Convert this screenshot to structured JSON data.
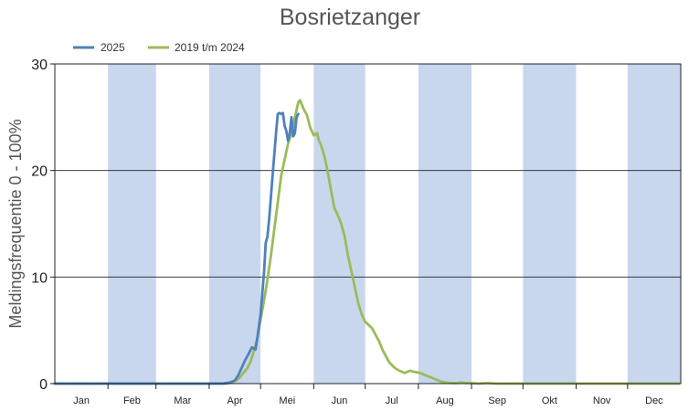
{
  "chart_data": {
    "type": "line",
    "title": "Bosrietzanger",
    "ylabel": "Meldingsfrequentie 0 - 100%",
    "xlabel": "",
    "ylim": [
      0,
      30
    ],
    "yticks": [
      0,
      10,
      20,
      30
    ],
    "months": [
      "Jan",
      "Feb",
      "Mar",
      "Apr",
      "Mei",
      "Jun",
      "Jul",
      "Aug",
      "Sep",
      "Okt",
      "Nov",
      "Dec"
    ],
    "shaded_months": [
      "Feb",
      "Apr",
      "Jun",
      "Aug",
      "Okt",
      "Dec"
    ],
    "grid": true,
    "legend_position": "top-left",
    "colors": {
      "band": "#c8d7ee",
      "grid": "#222222"
    },
    "series": [
      {
        "name": "2025",
        "color": "#4f81bd",
        "x": [
          "01-01",
          "04-09",
          "04-13",
          "04-16",
          "04-18",
          "04-20",
          "04-22",
          "04-24",
          "04-26",
          "04-28",
          "04-29",
          "05-01",
          "05-02",
          "05-03",
          "05-04",
          "05-05",
          "05-06",
          "05-07",
          "05-08",
          "05-09",
          "05-10",
          "05-11",
          "05-12",
          "05-13",
          "05-14",
          "05-15",
          "05-16",
          "05-17",
          "05-18",
          "05-19",
          "05-20",
          "05-21",
          "05-22",
          "05-23"
        ],
        "y": [
          0,
          0,
          0.1,
          0.3,
          0.8,
          1.5,
          2.2,
          2.8,
          3.4,
          3.2,
          4.2,
          6.5,
          8.5,
          10.5,
          13.2,
          13.8,
          15.5,
          17.5,
          19.5,
          21.5,
          23.5,
          25.3,
          25.4,
          25.3,
          25.4,
          24.2,
          23.7,
          22.8,
          23.5,
          25.0,
          23.2,
          23.5,
          25.0,
          25.3
        ]
      },
      {
        "name": "2019 t/m 2024",
        "color": "#9bbb59",
        "x": [
          "01-01",
          "04-05",
          "04-11",
          "04-14",
          "04-17",
          "04-19",
          "04-21",
          "04-23",
          "04-25",
          "04-27",
          "04-29",
          "05-01",
          "05-03",
          "05-05",
          "05-07",
          "05-09",
          "05-11",
          "05-13",
          "05-15",
          "05-17",
          "05-19",
          "05-21",
          "05-23",
          "05-24",
          "05-25",
          "05-26",
          "05-28",
          "05-30",
          "06-01",
          "06-03",
          "06-04",
          "06-05",
          "06-07",
          "06-09",
          "06-11",
          "06-13",
          "06-15",
          "06-17",
          "06-19",
          "06-21",
          "06-23",
          "06-25",
          "06-27",
          "06-29",
          "07-01",
          "07-03",
          "07-05",
          "07-07",
          "07-09",
          "07-11",
          "07-13",
          "07-15",
          "07-18",
          "07-21",
          "07-24",
          "07-27",
          "07-30",
          "08-02",
          "08-05",
          "08-08",
          "08-11",
          "08-14",
          "08-17",
          "08-20",
          "08-23",
          "08-26",
          "08-29",
          "09-01",
          "09-05",
          "09-10",
          "09-15",
          "09-20",
          "09-25",
          "09-30",
          "10-05",
          "10-10",
          "10-20",
          "11-01",
          "12-01",
          "12-31"
        ],
        "y": [
          0,
          0,
          0,
          0.1,
          0.3,
          0.6,
          1.0,
          1.4,
          2.0,
          3.0,
          4.2,
          6.0,
          7.8,
          9.8,
          12.0,
          14.5,
          17.0,
          19.5,
          21.0,
          22.5,
          23.5,
          25.0,
          26.4,
          26.6,
          26.2,
          25.8,
          25.2,
          24.0,
          23.3,
          23.5,
          22.8,
          22.5,
          21.5,
          20.0,
          18.2,
          16.5,
          15.8,
          15.0,
          13.8,
          12.0,
          10.5,
          9.0,
          7.5,
          6.5,
          5.8,
          5.5,
          5.2,
          4.6,
          4.0,
          3.2,
          2.6,
          2.0,
          1.5,
          1.2,
          1.0,
          1.2,
          1.1,
          1.0,
          0.8,
          0.6,
          0.4,
          0.2,
          0.1,
          0.05,
          0.05,
          0.1,
          0.05,
          0.05,
          0.0,
          0.05,
          0.0,
          0.0,
          0.0,
          0.0,
          0.0,
          0.0,
          0.0,
          0.0,
          0.0,
          0.0
        ]
      }
    ]
  }
}
